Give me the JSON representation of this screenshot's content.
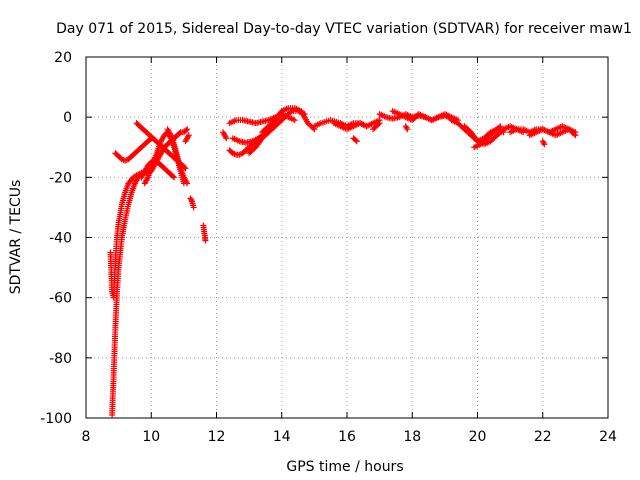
{
  "chart_data": {
    "type": "scatter",
    "title": "Day 071 of 2015, Sidereal Day-to-day VTEC variation (SDTVAR) for receiver maw1",
    "xlabel": "GPS time / hours",
    "ylabel": "SDTVAR / TECUs",
    "xlim": [
      8,
      24
    ],
    "ylim": [
      -100,
      20
    ],
    "xticks": [
      8,
      10,
      12,
      14,
      16,
      18,
      20,
      22,
      24
    ],
    "yticks": [
      20,
      0,
      -20,
      -40,
      -60,
      -80,
      -100
    ],
    "xtick_labels": [
      "8",
      "10",
      "12",
      "14",
      "16",
      "18",
      "20",
      "22",
      "24"
    ],
    "ytick_labels": [
      "20",
      "0",
      "-20",
      "-40",
      "-60",
      "-80",
      "-100"
    ],
    "grid": true,
    "marker": "+",
    "series": [
      {
        "name": "SDTVAR",
        "color": "#ff0000",
        "segments": [
          {
            "x": [
              8.8,
              8.85,
              8.9,
              8.95,
              9.0,
              9.05,
              9.1,
              9.2,
              9.3,
              9.4,
              9.5,
              9.6,
              9.7,
              9.8,
              9.9
            ],
            "y": [
              -99,
              -85,
              -70,
              -58,
              -50,
              -45,
              -40,
              -34,
              -29,
              -25,
              -22,
              -20,
              -19,
              -18.5,
              -18
            ]
          },
          {
            "x": [
              8.75,
              8.8,
              8.85,
              8.9,
              8.95,
              9.0,
              9.1,
              9.2,
              9.3,
              9.45,
              9.6,
              9.8,
              10.0
            ],
            "y": [
              -45,
              -58,
              -60,
              -48,
              -40,
              -35,
              -29,
              -25,
              -22,
              -20,
              -19,
              -18,
              -17
            ]
          },
          {
            "x": [
              8.9,
              9.0,
              9.1,
              9.2,
              9.3,
              9.4,
              9.5,
              9.6,
              9.7,
              9.8,
              9.9,
              10.0
            ],
            "y": [
              -12,
              -13,
              -14,
              -14.5,
              -14,
              -13,
              -12,
              -11,
              -10,
              -9,
              -8,
              -7
            ]
          },
          {
            "x": [
              9.55,
              9.65,
              9.75,
              9.85,
              9.95,
              10.05,
              10.15,
              10.25,
              10.35,
              10.45,
              10.55,
              10.65,
              10.75,
              10.85,
              10.95,
              11.05
            ],
            "y": [
              -2,
              -3,
              -4,
              -5,
              -6,
              -7,
              -8,
              -9,
              -10,
              -11,
              -12,
              -13,
              -14,
              -15,
              -16,
              -17
            ]
          },
          {
            "x": [
              9.8,
              9.9,
              10.0,
              10.1,
              10.2,
              10.3,
              10.4,
              10.5,
              10.6,
              10.7,
              10.8,
              10.9,
              11.0
            ],
            "y": [
              -22,
              -20,
              -17,
              -14,
              -11,
              -8,
              -6,
              -5,
              -7,
              -10,
              -14,
              -18,
              -22
            ]
          },
          {
            "x": [
              10.0,
              10.1,
              10.2,
              10.3,
              10.4,
              10.5,
              10.6,
              10.7,
              10.8,
              10.9,
              11.0,
              11.1
            ],
            "y": [
              -18,
              -16,
              -14,
              -12,
              -10,
              -9,
              -8,
              -7,
              -6,
              -5,
              -5,
              -4
            ]
          },
          {
            "x": [
              9.7,
              9.8,
              9.9,
              10.0,
              10.1,
              10.2,
              10.3,
              10.4,
              10.5,
              10.6,
              10.7
            ],
            "y": [
              -20,
              -18,
              -16,
              -15,
              -14,
              -15,
              -16,
              -17,
              -18,
              -19,
              -20
            ]
          },
          {
            "x": [
              10.5,
              10.6,
              10.7,
              10.8,
              10.9,
              11.0,
              11.1
            ],
            "y": [
              -4,
              -6,
              -9,
              -13,
              -17,
              -20,
              -22
            ]
          },
          {
            "x": [
              11.05,
              11.1,
              11.15
            ],
            "y": [
              -8,
              -7,
              -6
            ]
          },
          {
            "x": [
              11.2,
              11.25,
              11.3
            ],
            "y": [
              -27,
              -28,
              -30
            ]
          },
          {
            "x": [
              11.6,
              11.62,
              11.65,
              11.66
            ],
            "y": [
              -36,
              -38,
              -40,
              -41
            ]
          },
          {
            "x": [
              12.2,
              12.25,
              12.3
            ],
            "y": [
              -5,
              -6,
              -7
            ]
          },
          {
            "x": [
              12.4,
              12.6,
              12.8,
              13.0,
              13.2,
              13.4,
              13.6,
              13.8,
              14.0,
              14.2,
              14.4
            ],
            "y": [
              -2,
              -1,
              -1,
              -1.5,
              -2,
              -1.5,
              -1,
              0,
              1,
              0,
              -1
            ]
          },
          {
            "x": [
              12.4,
              12.5,
              12.6,
              12.7,
              12.8,
              12.9,
              13.0,
              13.1,
              13.2,
              13.3,
              13.4
            ],
            "y": [
              -11,
              -12,
              -12.5,
              -12.5,
              -12,
              -11,
              -10,
              -9,
              -8,
              -7,
              -6
            ]
          },
          {
            "x": [
              12.5,
              12.7,
              12.9,
              13.1,
              13.3,
              13.5,
              13.7,
              13.9,
              14.1,
              14.3,
              14.5,
              14.7
            ],
            "y": [
              -7,
              -8,
              -8.5,
              -8,
              -7,
              -6,
              -4,
              -2,
              0,
              2,
              2,
              1
            ]
          },
          {
            "x": [
              13.0,
              13.2,
              13.4,
              13.6,
              13.8,
              14.0,
              14.2,
              14.4,
              14.6,
              14.8,
              15.0
            ],
            "y": [
              -12,
              -10,
              -7,
              -4,
              -1,
              2,
              3,
              3,
              2,
              -2,
              -4
            ]
          },
          {
            "x": [
              13.4,
              13.5,
              13.6,
              13.7,
              13.8,
              13.9,
              14.0
            ],
            "y": [
              -5,
              -4,
              -3,
              -2,
              -1,
              0,
              2
            ]
          },
          {
            "x": [
              15.0,
              15.2,
              15.5,
              15.8,
              16.0,
              16.2,
              16.4,
              16.6,
              16.8,
              17.0
            ],
            "y": [
              -3,
              -2,
              -1,
              -2,
              -3,
              -2,
              -2,
              -3,
              -2,
              -1
            ]
          },
          {
            "x": [
              15.6,
              15.8,
              16.0,
              16.2,
              16.4,
              16.6
            ],
            "y": [
              -2,
              -3,
              -4,
              -3,
              -2,
              -3
            ]
          },
          {
            "x": [
              16.2,
              16.3
            ],
            "y": [
              -7,
              -8
            ]
          },
          {
            "x": [
              16.8,
              17.0
            ],
            "y": [
              -4,
              -2
            ]
          },
          {
            "x": [
              17.0,
              17.2,
              17.4,
              17.6,
              17.8,
              18.0,
              18.2,
              18.4,
              18.6,
              18.8,
              19.0,
              19.2,
              19.4
            ],
            "y": [
              1,
              0,
              -0.5,
              0,
              1,
              0,
              0.5,
              0,
              -1,
              0,
              1,
              0,
              -1
            ]
          },
          {
            "x": [
              17.4,
              17.6,
              17.8,
              18.0,
              18.2,
              18.4,
              18.6,
              18.8,
              19.0,
              19.2
            ],
            "y": [
              2,
              1,
              0,
              -1,
              1,
              0,
              -1,
              0,
              0.5,
              -0.5
            ]
          },
          {
            "x": [
              17.8,
              17.85
            ],
            "y": [
              -3,
              -4
            ]
          },
          {
            "x": [
              19.2,
              19.4,
              19.6,
              19.8,
              20.0,
              20.2,
              20.4,
              20.6,
              20.8
            ],
            "y": [
              -1,
              -2,
              -4,
              -6,
              -8,
              -7,
              -5,
              -4,
              -5
            ]
          },
          {
            "x": [
              19.6,
              19.8,
              20.0,
              20.2,
              20.4,
              20.6,
              20.8,
              21.0,
              21.2,
              21.4
            ],
            "y": [
              -3,
              -5,
              -8,
              -9,
              -8,
              -6,
              -4,
              -3,
              -4,
              -5
            ]
          },
          {
            "x": [
              19.9,
              20.1,
              20.3,
              20.5,
              20.7
            ],
            "y": [
              -10,
              -9,
              -7,
              -5,
              -3
            ]
          },
          {
            "x": [
              21.0,
              21.2,
              21.4,
              21.6,
              21.8,
              22.0,
              22.2,
              22.4,
              22.6,
              22.8,
              23.0
            ],
            "y": [
              -5,
              -4,
              -4,
              -5,
              -4,
              -4,
              -5,
              -4,
              -3,
              -4,
              -5
            ]
          },
          {
            "x": [
              21.6,
              21.8,
              22.0,
              22.2,
              22.4,
              22.6,
              22.8,
              23.0
            ],
            "y": [
              -6,
              -5,
              -4,
              -5,
              -6,
              -5,
              -4,
              -6
            ]
          },
          {
            "x": [
              22.0,
              22.05
            ],
            "y": [
              -8,
              -9
            ]
          }
        ]
      }
    ]
  }
}
